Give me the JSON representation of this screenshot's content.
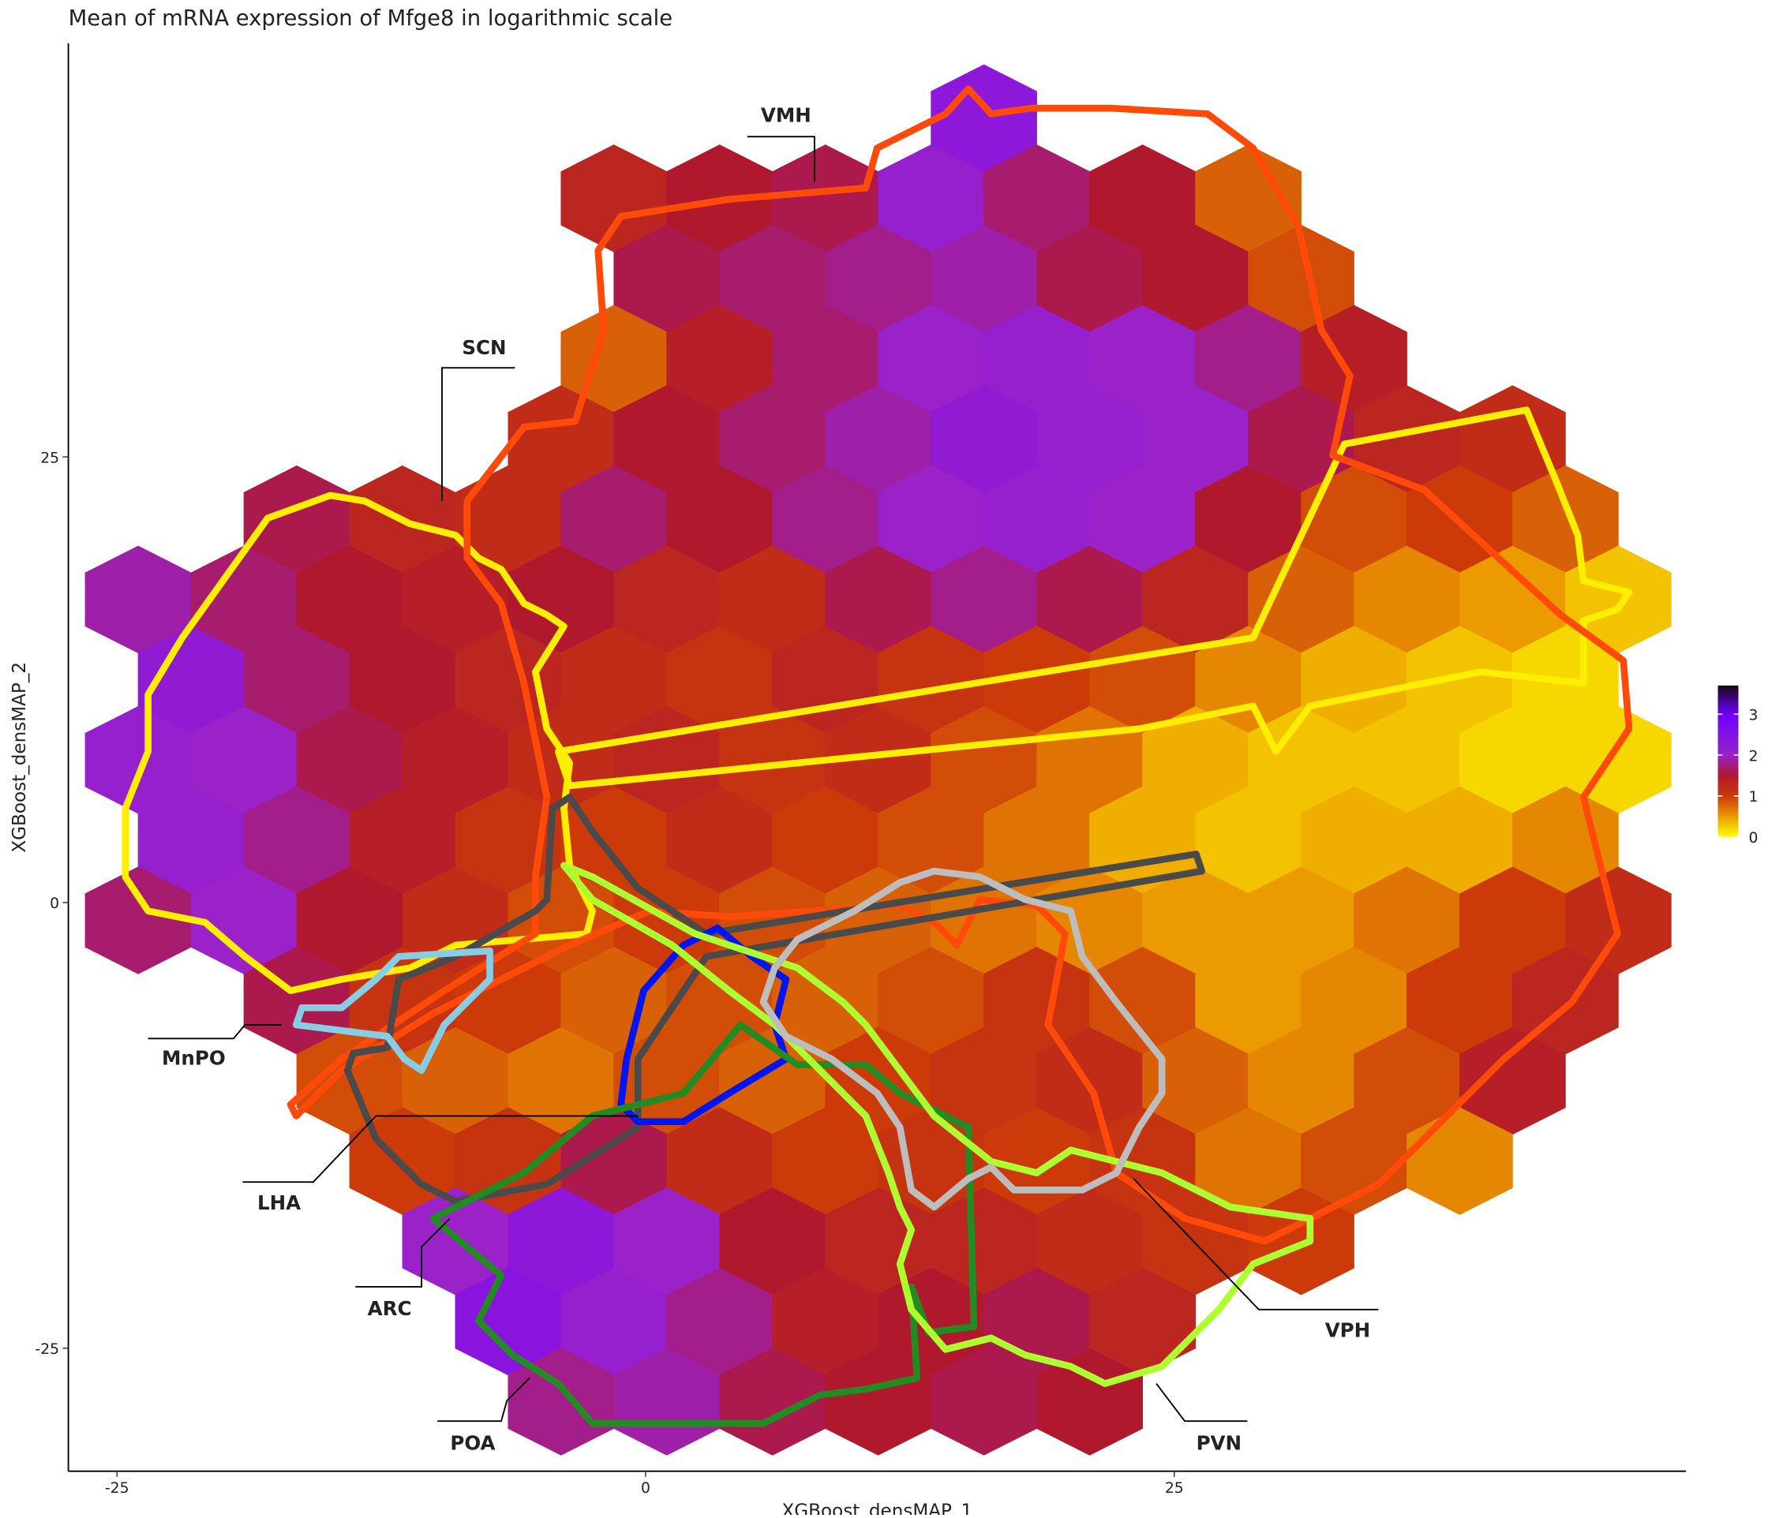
{
  "chart_data": {
    "type": "hexbin",
    "title": "Mean of mRNA expression of Mfge8 in logarithmic scale",
    "x_label": "XGBoost_densMAP_1",
    "y_label": "XGBoost_densMAP_2",
    "xlim": [
      -27.3,
      49.2
    ],
    "ylim": [
      -31.9,
      48.2
    ],
    "xticks": [
      -25,
      0,
      25
    ],
    "yticks": [
      -25,
      0,
      25
    ],
    "grid": false,
    "clim": [
      0,
      3.7
    ],
    "cticks": [
      0,
      1,
      2,
      3
    ],
    "colorscale": [
      {
        "value": 0,
        "color": "#ffff00"
      },
      {
        "value": 0.5,
        "color": "#eb9a00"
      },
      {
        "value": 1,
        "color": "#cc3a0a"
      },
      {
        "value": 1.5,
        "color": "#b0182e"
      },
      {
        "value": 2,
        "color": "#9a22c8"
      },
      {
        "value": 3,
        "color": "#6f00ff"
      },
      {
        "value": 3.7,
        "color": "#140818"
      }
    ],
    "rows": [
      {
        "y": 44,
        "x": [
          16
        ],
        "values": [
          2.3
        ]
      },
      {
        "y": 39.5,
        "x": [
          -1.5,
          3.5,
          8.5,
          13.5,
          18.5,
          23.5,
          28.5
        ],
        "values": [
          1.3,
          1.5,
          1.6,
          2.1,
          1.7,
          1.5,
          0.8
        ]
      },
      {
        "y": 35,
        "x": [
          1,
          6,
          11,
          16,
          21,
          26,
          31
        ],
        "values": [
          1.6,
          1.7,
          1.8,
          1.9,
          1.6,
          1.5,
          0.9
        ]
      },
      {
        "y": 30.5,
        "x": [
          -1.5,
          3.5,
          8.5,
          13.5,
          18.5,
          23.5,
          28.5,
          33.5
        ],
        "values": [
          0.8,
          1.4,
          1.7,
          2.0,
          2.1,
          2.0,
          1.8,
          1.4
        ]
      },
      {
        "y": 26,
        "x": [
          -4,
          1,
          6,
          11,
          16,
          21,
          26,
          31,
          36,
          41
        ],
        "values": [
          1.2,
          1.5,
          1.7,
          1.9,
          2.2,
          2.1,
          2.0,
          1.6,
          1.3,
          1.2
        ]
      },
      {
        "y": 21.5,
        "x": [
          -16.5,
          -11.5,
          -6.5,
          -1.5,
          3.5,
          8.5,
          13.5,
          18.5,
          23.5,
          28.5,
          33.5,
          38.5,
          43.5
        ],
        "values": [
          1.6,
          1.3,
          1.2,
          1.7,
          1.5,
          1.8,
          2.0,
          2.1,
          2.0,
          1.5,
          0.9,
          1.0,
          0.8
        ]
      },
      {
        "y": 17,
        "x": [
          -24,
          -19,
          -14,
          -9,
          -4,
          1,
          6,
          11,
          16,
          21,
          26,
          31,
          36,
          41,
          46
        ],
        "values": [
          1.9,
          1.7,
          1.5,
          1.4,
          1.5,
          1.3,
          1.2,
          1.6,
          1.8,
          1.6,
          1.3,
          0.8,
          0.6,
          0.5,
          0.3
        ]
      },
      {
        "y": 12.5,
        "x": [
          -21.5,
          -16.5,
          -11.5,
          -6.5,
          -1.5,
          3.5,
          8.5,
          13.5,
          18.5,
          23.5,
          28.5,
          33.5,
          38.5,
          43.5
        ],
        "values": [
          2.2,
          1.7,
          1.5,
          1.3,
          1.2,
          1.1,
          1.3,
          1.1,
          1.0,
          0.9,
          0.6,
          0.4,
          0.3,
          0.2
        ]
      },
      {
        "y": 8,
        "x": [
          -24,
          -19,
          -14,
          -9,
          -4,
          1,
          6,
          11,
          16,
          21,
          26,
          31,
          36,
          41,
          46
        ],
        "values": [
          2.1,
          2.0,
          1.6,
          1.4,
          1.2,
          1.3,
          1.1,
          1.2,
          0.9,
          0.7,
          0.4,
          0.3,
          0.3,
          0.2,
          0.2
        ]
      },
      {
        "y": 3.5,
        "x": [
          -21.5,
          -16.5,
          -11.5,
          -6.5,
          -1.5,
          3.5,
          8.5,
          13.5,
          18.5,
          23.5,
          28.5,
          33.5,
          38.5,
          43.5
        ],
        "values": [
          2.1,
          1.8,
          1.4,
          1.1,
          1.0,
          1.2,
          1.0,
          0.9,
          0.7,
          0.4,
          0.3,
          0.4,
          0.4,
          0.6
        ]
      },
      {
        "y": -1,
        "x": [
          -24,
          -19,
          -14,
          -9,
          -4,
          1,
          6,
          11,
          16,
          21,
          26,
          31,
          36,
          41,
          46
        ],
        "values": [
          1.7,
          2.0,
          1.5,
          1.2,
          0.9,
          1.0,
          0.9,
          0.8,
          0.7,
          0.6,
          0.5,
          0.5,
          0.7,
          1.0,
          1.2
        ]
      },
      {
        "y": -5.5,
        "x": [
          -16.5,
          -11.5,
          -6.5,
          -1.5,
          3.5,
          8.5,
          13.5,
          18.5,
          23.5,
          28.5,
          33.5,
          38.5,
          43.5
        ],
        "values": [
          1.6,
          1.1,
          1.0,
          0.8,
          0.9,
          0.8,
          0.9,
          1.1,
          0.9,
          0.5,
          0.6,
          1.0,
          1.3
        ]
      },
      {
        "y": -10,
        "x": [
          -14,
          -9,
          -4,
          1,
          6,
          11,
          16,
          21,
          26,
          31,
          36,
          41
        ],
        "values": [
          0.9,
          0.8,
          0.7,
          0.9,
          0.8,
          1.0,
          1.1,
          1.2,
          0.8,
          0.6,
          0.9,
          1.4
        ]
      },
      {
        "y": -14.5,
        "x": [
          -11.5,
          -6.5,
          -1.5,
          3.5,
          8.5,
          13.5,
          18.5,
          23.5,
          28.5,
          33.5,
          38.5
        ],
        "values": [
          1.0,
          1.1,
          1.6,
          1.2,
          1.0,
          1.1,
          1.0,
          1.1,
          0.7,
          0.9,
          0.6
        ]
      },
      {
        "y": -19,
        "x": [
          -9,
          -4,
          1,
          6,
          11,
          16,
          21,
          26,
          31
        ],
        "values": [
          2.0,
          2.3,
          2.0,
          1.5,
          1.3,
          1.3,
          1.2,
          1.1,
          1.0
        ]
      },
      {
        "y": -23.5,
        "x": [
          -6.5,
          -1.5,
          3.5,
          8.5,
          13.5,
          18.5,
          23.5
        ],
        "values": [
          2.4,
          2.1,
          1.8,
          1.4,
          1.5,
          1.6,
          1.3
        ]
      },
      {
        "y": -28,
        "x": [
          -4,
          1,
          6,
          11,
          16,
          21
        ],
        "values": [
          1.8,
          1.9,
          1.6,
          1.5,
          1.6,
          1.5
        ]
      }
    ],
    "annotations": [
      {
        "text": "VMH"
      },
      {
        "text": "SCN"
      },
      {
        "text": "MnPO"
      },
      {
        "text": "LHA"
      },
      {
        "text": "ARC"
      },
      {
        "text": "POA"
      },
      {
        "text": "PVN"
      },
      {
        "text": "VPH"
      }
    ]
  }
}
